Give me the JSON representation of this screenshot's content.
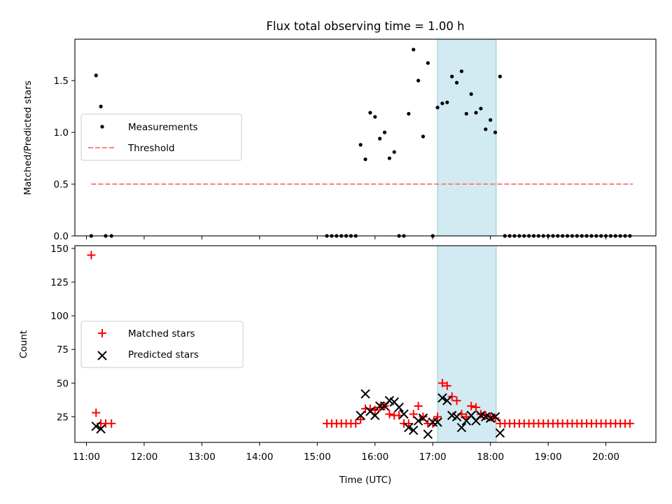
{
  "chart_data": [
    {
      "type": "scatter",
      "title": "Flux total observing time = 1.00 h",
      "xlabel": "",
      "ylabel": "Matched/Predicted stars",
      "xlim": [
        "10:48",
        "20:52"
      ],
      "ylim": [
        0,
        1.9
      ],
      "yticks": [
        0.0,
        0.5,
        1.0,
        1.5
      ],
      "ytick_labels": [
        "0.0",
        "0.5",
        "1.0",
        "1.5"
      ],
      "xticks": [
        "11:00",
        "12:00",
        "13:00",
        "14:00",
        "15:00",
        "16:00",
        "17:00",
        "18:00",
        "19:00",
        "20:00"
      ],
      "x_tick_labels_shown": false,
      "grid": false,
      "legend": "center-left",
      "shaded_region": {
        "x": [
          "17:05",
          "18:06"
        ],
        "color": "#add8e6"
      },
      "series": [
        {
          "name": "Measurements",
          "marker": "dot",
          "color": "#000000",
          "x": [
            "11:05",
            "11:10",
            "11:15",
            "11:20",
            "11:26",
            "15:10",
            "15:15",
            "15:20",
            "15:25",
            "15:30",
            "15:35",
            "15:40",
            "15:45",
            "15:50",
            "15:55",
            "16:00",
            "16:05",
            "16:10",
            "16:15",
            "16:20",
            "16:25",
            "16:30",
            "16:35",
            "16:40",
            "16:45",
            "16:50",
            "16:55",
            "17:00",
            "17:05",
            "17:10",
            "17:15",
            "17:20",
            "17:25",
            "17:30",
            "17:35",
            "17:40",
            "17:45",
            "17:50",
            "17:55",
            "18:00",
            "18:05",
            "18:10",
            "18:15",
            "18:20",
            "18:25",
            "18:30",
            "18:35",
            "18:40",
            "18:45",
            "18:50",
            "18:55",
            "19:00",
            "19:05",
            "19:10",
            "19:15",
            "19:20",
            "19:25",
            "19:30",
            "19:35",
            "19:40",
            "19:45",
            "19:50",
            "19:55",
            "20:00",
            "20:05",
            "20:10",
            "20:15",
            "20:20",
            "20:25"
          ],
          "y": [
            0.0,
            1.55,
            1.25,
            0.0,
            0.0,
            0.0,
            0.0,
            0.0,
            0.0,
            0.0,
            0.0,
            0.0,
            0.88,
            0.74,
            1.19,
            1.15,
            0.94,
            1.0,
            0.75,
            0.81,
            0.0,
            0.0,
            1.18,
            1.8,
            1.5,
            0.96,
            1.67,
            0.0,
            1.24,
            1.28,
            1.29,
            1.54,
            1.48,
            1.59,
            1.18,
            1.37,
            1.19,
            1.23,
            1.03,
            1.12,
            1.0,
            1.54,
            0.0,
            0.0,
            0.0,
            0.0,
            0.0,
            0.0,
            0.0,
            0.0,
            0.0,
            0.0,
            0.0,
            0.0,
            0.0,
            0.0,
            0.0,
            0.0,
            0.0,
            0.0,
            0.0,
            0.0,
            0.0,
            0.0,
            0.0,
            0.0,
            0.0,
            0.0,
            0.0
          ]
        },
        {
          "name": "Threshold",
          "marker": "dashed-line",
          "color": "#ff7f7f",
          "x": [
            "11:05",
            "20:28"
          ],
          "y": [
            0.5,
            0.5
          ]
        }
      ]
    },
    {
      "type": "scatter",
      "title": "",
      "xlabel": "Time (UTC)",
      "ylabel": "Count",
      "xlim": [
        "10:48",
        "20:52"
      ],
      "ylim": [
        6,
        152
      ],
      "yticks": [
        25,
        50,
        75,
        100,
        125,
        150
      ],
      "ytick_labels": [
        "25",
        "50",
        "75",
        "100",
        "125",
        "150"
      ],
      "xticks": [
        "11:00",
        "12:00",
        "13:00",
        "14:00",
        "15:00",
        "16:00",
        "17:00",
        "18:00",
        "19:00",
        "20:00"
      ],
      "xtick_labels": [
        "11:00",
        "12:00",
        "13:00",
        "14:00",
        "15:00",
        "16:00",
        "17:00",
        "18:00",
        "19:00",
        "20:00"
      ],
      "grid": false,
      "legend": "center-left",
      "shaded_region": {
        "x": [
          "17:05",
          "18:06"
        ],
        "color": "#add8e6"
      },
      "series": [
        {
          "name": "Matched stars",
          "marker": "plus",
          "color": "#ff0000",
          "x": [
            "11:05",
            "11:10",
            "11:15",
            "11:20",
            "11:26",
            "15:10",
            "15:15",
            "15:20",
            "15:25",
            "15:30",
            "15:35",
            "15:40",
            "15:45",
            "15:50",
            "15:55",
            "16:00",
            "16:05",
            "16:10",
            "16:15",
            "16:20",
            "16:25",
            "16:30",
            "16:35",
            "16:40",
            "16:45",
            "16:50",
            "16:55",
            "17:00",
            "17:05",
            "17:10",
            "17:15",
            "17:20",
            "17:25",
            "17:30",
            "17:35",
            "17:40",
            "17:45",
            "17:50",
            "17:55",
            "18:00",
            "18:05",
            "18:10",
            "18:15",
            "18:20",
            "18:25",
            "18:30",
            "18:35",
            "18:40",
            "18:45",
            "18:50",
            "18:55",
            "19:00",
            "19:05",
            "19:10",
            "19:15",
            "19:20",
            "19:25",
            "19:30",
            "19:35",
            "19:40",
            "19:45",
            "19:50",
            "19:55",
            "20:00",
            "20:05",
            "20:10",
            "20:15",
            "20:20",
            "20:25"
          ],
          "y": [
            145,
            28,
            20,
            20,
            20,
            20,
            20,
            20,
            20,
            20,
            20,
            20,
            23,
            31,
            31,
            30,
            32,
            33,
            27,
            26,
            26,
            20,
            20,
            27,
            33,
            25,
            20,
            20,
            25,
            50,
            48,
            40,
            37,
            27,
            25,
            33,
            32,
            27,
            26,
            25,
            24,
            20,
            20,
            20,
            20,
            20,
            20,
            20,
            20,
            20,
            20,
            20,
            20,
            20,
            20,
            20,
            20,
            20,
            20,
            20,
            20,
            20,
            20,
            20,
            20,
            20,
            20,
            20,
            20
          ]
        },
        {
          "name": "Predicted stars",
          "marker": "x",
          "color": "#000000",
          "x": [
            "11:10",
            "11:15",
            "15:45",
            "15:50",
            "15:55",
            "16:00",
            "16:05",
            "16:10",
            "16:15",
            "16:20",
            "16:25",
            "16:30",
            "16:35",
            "16:40",
            "16:45",
            "16:50",
            "16:55",
            "17:00",
            "17:05",
            "17:10",
            "17:15",
            "17:20",
            "17:25",
            "17:30",
            "17:35",
            "17:40",
            "17:45",
            "17:50",
            "17:55",
            "18:00",
            "18:05",
            "18:10"
          ],
          "y": [
            18,
            16,
            26,
            42,
            29,
            26,
            33,
            33,
            37,
            36,
            32,
            27,
            17,
            15,
            22,
            24,
            12,
            21,
            21,
            39,
            37,
            26,
            25,
            17,
            22,
            26,
            22,
            26,
            25,
            24,
            25,
            13
          ]
        }
      ]
    }
  ]
}
